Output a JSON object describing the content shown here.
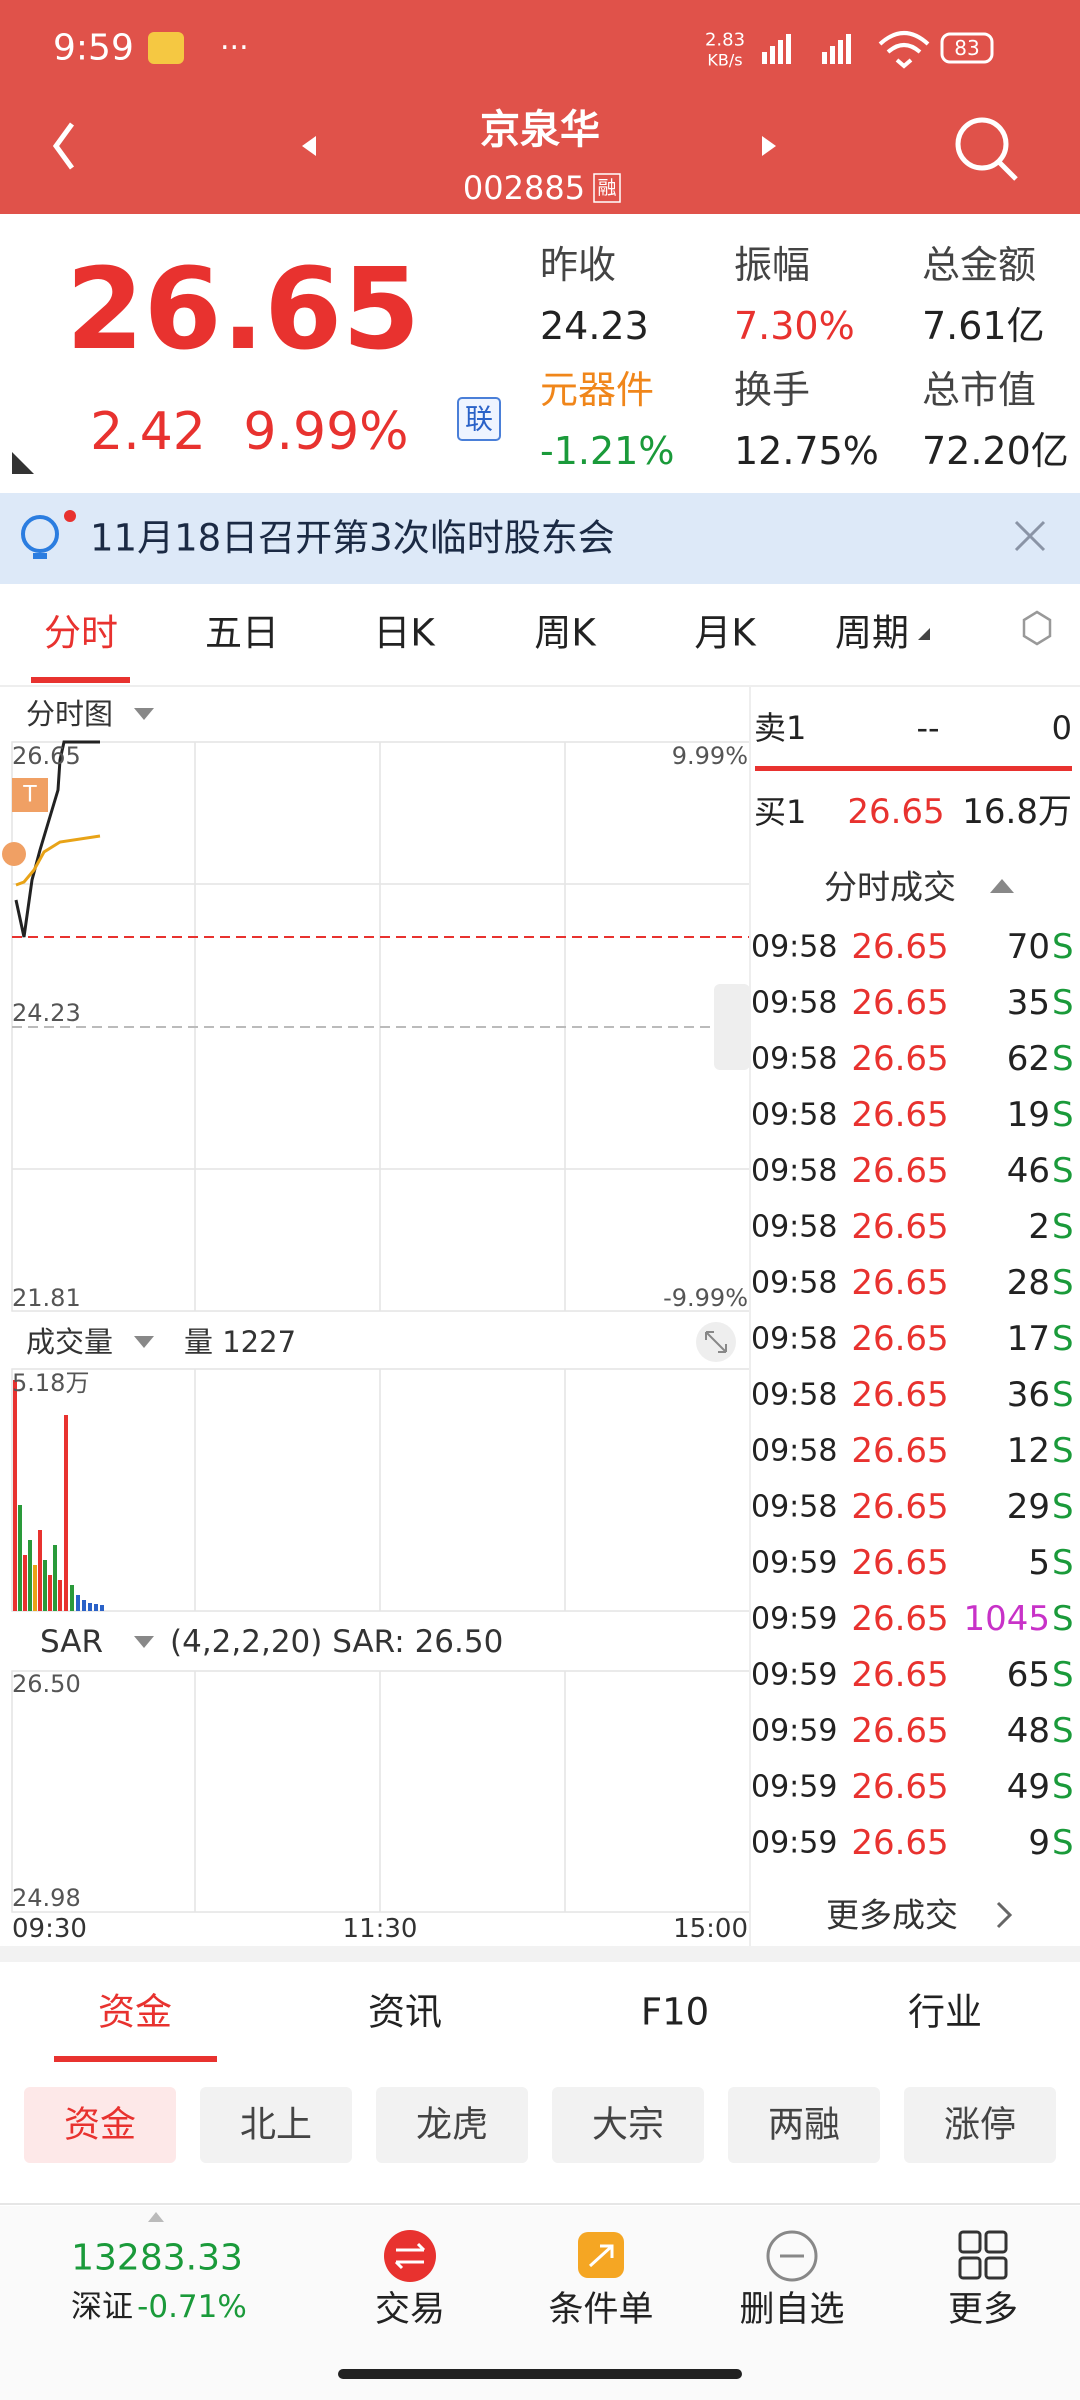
{
  "status": {
    "time": "9:59",
    "net_speed": "2.83",
    "net_unit": "KB/s",
    "battery": "83"
  },
  "header": {
    "title": "京泉华",
    "code": "002885",
    "badge": "融"
  },
  "quote": {
    "price": "26.65",
    "change": "2.42",
    "change_pct": "9.99%",
    "link_badge": "联",
    "stats": [
      {
        "label": "昨收",
        "value": "24.23"
      },
      {
        "label": "振幅",
        "value": "7.30%"
      },
      {
        "label": "总金额",
        "value": "7.61亿"
      },
      {
        "label": "元器件",
        "value": "-1.21%"
      },
      {
        "label": "换手",
        "value": "12.75%"
      },
      {
        "label": "总市值",
        "value": "72.20亿"
      }
    ]
  },
  "notice": "11月18日召开第3次临时股东会",
  "tabs": [
    "分时",
    "五日",
    "日K",
    "周K",
    "月K",
    "周期"
  ],
  "chart": {
    "title": "分时图",
    "price_high": "26.65",
    "pct_high": "9.99%",
    "prev_close": "24.23",
    "price_low": "21.81",
    "pct_low": "-9.99%",
    "volume_title": "成交量",
    "volume_value": "量 1227",
    "volume_max": "5.18万",
    "indicator": "SAR",
    "indicator_value": "(4,2,2,20) SAR: 26.50",
    "indicator_high": "26.50",
    "indicator_low": "24.98",
    "times": [
      "09:30",
      "11:30",
      "15:00"
    ]
  },
  "order_book": {
    "sell": [
      "卖1",
      "--",
      "0"
    ],
    "buy": [
      "买1",
      "26.65",
      "16.8万"
    ]
  },
  "trades": {
    "title": "分时成交",
    "rows": [
      [
        "09:58",
        "26.65",
        "70",
        "S"
      ],
      [
        "09:58",
        "26.65",
        "35",
        "S"
      ],
      [
        "09:58",
        "26.65",
        "62",
        "S"
      ],
      [
        "09:58",
        "26.65",
        "19",
        "S"
      ],
      [
        "09:58",
        "26.65",
        "46",
        "S"
      ],
      [
        "09:58",
        "26.65",
        "2",
        "S"
      ],
      [
        "09:58",
        "26.65",
        "28",
        "S"
      ],
      [
        "09:58",
        "26.65",
        "17",
        "S"
      ],
      [
        "09:58",
        "26.65",
        "36",
        "S"
      ],
      [
        "09:58",
        "26.65",
        "12",
        "S"
      ],
      [
        "09:58",
        "26.65",
        "29",
        "S"
      ],
      [
        "09:59",
        "26.65",
        "5",
        "S"
      ],
      [
        "09:59",
        "26.65",
        "1045",
        "S"
      ],
      [
        "09:59",
        "26.65",
        "65",
        "S"
      ],
      [
        "09:59",
        "26.65",
        "48",
        "S"
      ],
      [
        "09:59",
        "26.65",
        "49",
        "S"
      ],
      [
        "09:59",
        "26.65",
        "9",
        "S"
      ]
    ],
    "more": "更多成交"
  },
  "bottom_tabs": [
    "资金",
    "资讯",
    "F10",
    "行业"
  ],
  "sub_tabs": [
    "资金",
    "北上",
    "龙虎",
    "大宗",
    "两融",
    "涨停"
  ],
  "footer": {
    "index_value": "13283.33",
    "index_name": "深证",
    "index_change": "-0.71%",
    "actions": [
      "交易",
      "条件单",
      "删自选",
      "更多"
    ]
  }
}
